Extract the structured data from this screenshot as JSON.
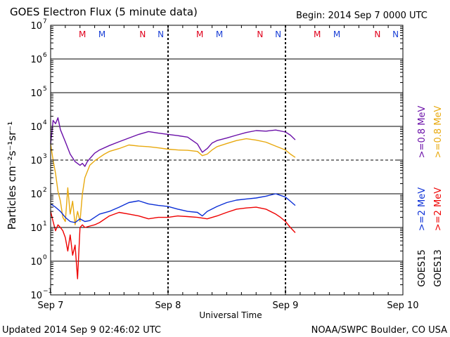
{
  "header": {
    "title": "GOES Electron Flux (5 minute data)",
    "begin": "Begin: 2014 Sep 7 0000 UTC"
  },
  "footer": {
    "updated": "Updated 2014 Sep  9 02:46:02 UTC",
    "credit": "NOAA/SWPC Boulder, CO USA"
  },
  "chart_data": {
    "type": "line",
    "title": "GOES Electron Flux (5 minute data)",
    "xlabel": "Universal Time",
    "ylabel": "Particles cm⁻²s⁻¹sr⁻¹",
    "xlim": [
      0,
      72
    ],
    "x_unit": "hours since 2014 Sep 7 0000 UTC",
    "ylim_log10": [
      -1,
      7
    ],
    "y_ticks": [
      {
        "exp": -1,
        "label": "10",
        "sup": "−1"
      },
      {
        "exp": 0,
        "label": "10",
        "sup": "0"
      },
      {
        "exp": 1,
        "label": "10",
        "sup": "1"
      },
      {
        "exp": 2,
        "label": "10",
        "sup": "2"
      },
      {
        "exp": 3,
        "label": "10",
        "sup": "3"
      },
      {
        "exp": 4,
        "label": "10",
        "sup": "4"
      },
      {
        "exp": 5,
        "label": "10",
        "sup": "5"
      },
      {
        "exp": 6,
        "label": "10",
        "sup": "6"
      },
      {
        "exp": 7,
        "label": "10",
        "sup": "7"
      }
    ],
    "x_ticks": [
      {
        "hour": 0,
        "label": "Sep 7"
      },
      {
        "hour": 24,
        "label": "Sep 8"
      },
      {
        "hour": 48,
        "label": "Sep 9"
      },
      {
        "hour": 72,
        "label": "Sep 10"
      }
    ],
    "alert_threshold": 1000,
    "day_markers": [
      {
        "hour": 6.5,
        "label": "M",
        "color": "#e0001b"
      },
      {
        "hour": 10.5,
        "label": "M",
        "color": "#1a3fd6"
      },
      {
        "hour": 18.8,
        "label": "N",
        "color": "#e0001b"
      },
      {
        "hour": 22.5,
        "label": "N",
        "color": "#1a3fd6"
      },
      {
        "hour": 30.5,
        "label": "M",
        "color": "#e0001b"
      },
      {
        "hour": 34.5,
        "label": "M",
        "color": "#1a3fd6"
      },
      {
        "hour": 42.8,
        "label": "N",
        "color": "#e0001b"
      },
      {
        "hour": 46.5,
        "label": "N",
        "color": "#1a3fd6"
      },
      {
        "hour": 54.5,
        "label": "M",
        "color": "#e0001b"
      },
      {
        "hour": 58.5,
        "label": "M",
        "color": "#1a3fd6"
      },
      {
        "hour": 66.8,
        "label": "N",
        "color": "#e0001b"
      },
      {
        "hour": 70.5,
        "label": "N",
        "color": "#1a3fd6"
      }
    ],
    "satellites": [
      {
        "name": "GOES15",
        "color": "#000000"
      },
      {
        "name": "GOES13",
        "color": "#000000"
      }
    ],
    "series": [
      {
        "name": ">=0.8 MeV",
        "satellite": "GOES15",
        "color": "#6a0fa8",
        "x": [
          0,
          0.5,
          1,
          1.5,
          2,
          3,
          4,
          5,
          6,
          6.5,
          7,
          7.5,
          8,
          9,
          10,
          12,
          14,
          16,
          18,
          20,
          22,
          24,
          26,
          28,
          30,
          31,
          32,
          33,
          34,
          36,
          38,
          40,
          42,
          44,
          46,
          48,
          49,
          50
        ],
        "y": [
          3000,
          15000,
          12000,
          18000,
          8000,
          3500,
          1500,
          900,
          700,
          800,
          650,
          900,
          1100,
          1600,
          2000,
          2700,
          3500,
          4500,
          5800,
          7000,
          6300,
          5800,
          5300,
          4800,
          3000,
          1700,
          2200,
          3200,
          3800,
          4500,
          5500,
          6600,
          7500,
          7200,
          7800,
          6800,
          5500,
          4000
        ]
      },
      {
        "name": ">=0.8 MeV",
        "satellite": "GOES13",
        "color": "#e8a90e",
        "x": [
          0,
          0.5,
          1,
          1.5,
          2,
          2.5,
          3,
          3.5,
          4,
          4.5,
          5,
          5.5,
          6,
          6.5,
          7,
          8,
          9,
          10,
          11,
          12,
          14,
          16,
          18,
          20,
          22,
          24,
          26,
          28,
          30,
          31,
          32,
          33,
          34,
          36,
          38,
          40,
          42,
          44,
          46,
          48,
          49,
          50
        ],
        "y": [
          3000,
          1000,
          400,
          120,
          60,
          20,
          15,
          150,
          25,
          60,
          12,
          30,
          15,
          100,
          300,
          700,
          950,
          1200,
          1500,
          1800,
          2200,
          2800,
          2600,
          2500,
          2300,
          2100,
          2000,
          1950,
          1800,
          1350,
          1500,
          2000,
          2500,
          3100,
          3800,
          4300,
          3900,
          3400,
          2600,
          2000,
          1500,
          1200
        ]
      },
      {
        "name": ">=2 MeV",
        "satellite": "GOES15",
        "color": "#0b2fd6",
        "x": [
          0,
          1,
          2,
          3,
          4,
          5,
          6,
          7,
          8,
          9,
          10,
          12,
          14,
          16,
          18,
          20,
          22,
          24,
          26,
          28,
          30,
          31,
          32,
          34,
          36,
          38,
          40,
          42,
          44,
          46,
          48,
          49,
          50
        ],
        "y": [
          50,
          40,
          30,
          20,
          15,
          14,
          18,
          15,
          16,
          20,
          25,
          30,
          40,
          55,
          62,
          50,
          45,
          42,
          35,
          30,
          28,
          22,
          30,
          42,
          55,
          65,
          70,
          75,
          85,
          100,
          80,
          60,
          45
        ]
      },
      {
        "name": ">=2 MeV",
        "satellite": "GOES13",
        "color": "#ee0000",
        "x": [
          0,
          0.5,
          1,
          1.5,
          2,
          2.5,
          3,
          3.5,
          4,
          4.5,
          5,
          5.5,
          6,
          6.5,
          7,
          8,
          9,
          10,
          12,
          14,
          16,
          18,
          20,
          22,
          24,
          26,
          28,
          30,
          32,
          34,
          36,
          38,
          40,
          42,
          44,
          46,
          47,
          48,
          49,
          50
        ],
        "y": [
          30,
          15,
          8,
          12,
          10,
          8,
          5,
          2,
          6,
          1.5,
          3,
          0.3,
          10,
          12,
          10,
          11,
          12,
          14,
          22,
          28,
          25,
          22,
          18,
          20,
          20,
          22,
          21,
          20,
          18,
          22,
          28,
          35,
          38,
          40,
          35,
          25,
          20,
          15,
          10,
          7
        ]
      }
    ]
  }
}
